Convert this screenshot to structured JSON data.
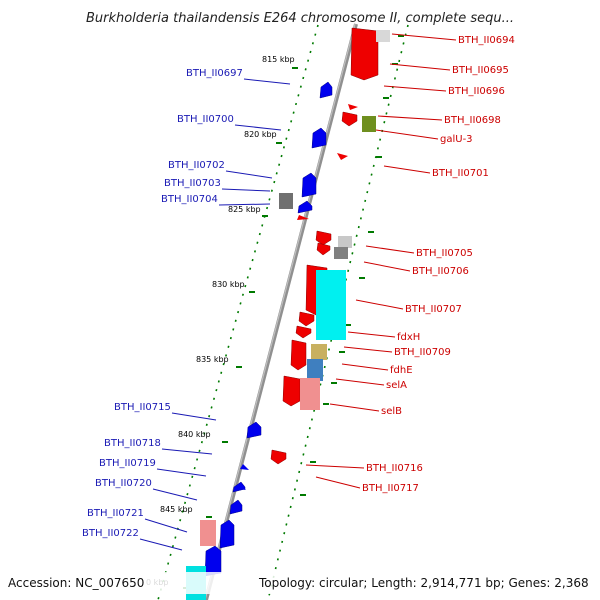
{
  "title": "Burkholderia thailandensis E264 chromosome II, complete sequ...",
  "footer": {
    "accession": "Accession: NC_007650",
    "topology": "Topology: circular; Length: 2,914,771 bp; Genes: 2,368"
  },
  "kbp_labels": [
    "815 kbp",
    "820 kbp",
    "825 kbp",
    "830 kbp",
    "835 kbp",
    "840 kbp",
    "845 kbp",
    "0 kbp"
  ],
  "left_genes": [
    "BTH_II0697",
    "BTH_II0700",
    "BTH_II0702",
    "BTH_II0703",
    "BTH_II0704",
    "BTH_II0715",
    "BTH_II0718",
    "BTH_II0719",
    "BTH_II0720",
    "BTH_II0721",
    "BTH_II0722"
  ],
  "right_genes": [
    "BTH_II0694",
    "BTH_II0695",
    "BTH_II0696",
    "BTH_II0698",
    "galU-3",
    "BTH_II0701",
    "BTH_II0705",
    "BTH_II0706",
    "BTH_II0707",
    "fdxH",
    "BTH_II0709",
    "fdhE",
    "selA",
    "selB",
    "BTH_II0716",
    "BTH_II0717"
  ],
  "colors": {
    "forward": "#0000ee",
    "reverse": "#ee0000",
    "left_label": "#1a1ab4",
    "right_label": "#cc0000",
    "backbone": "#808080",
    "tick": "#007a00"
  }
}
